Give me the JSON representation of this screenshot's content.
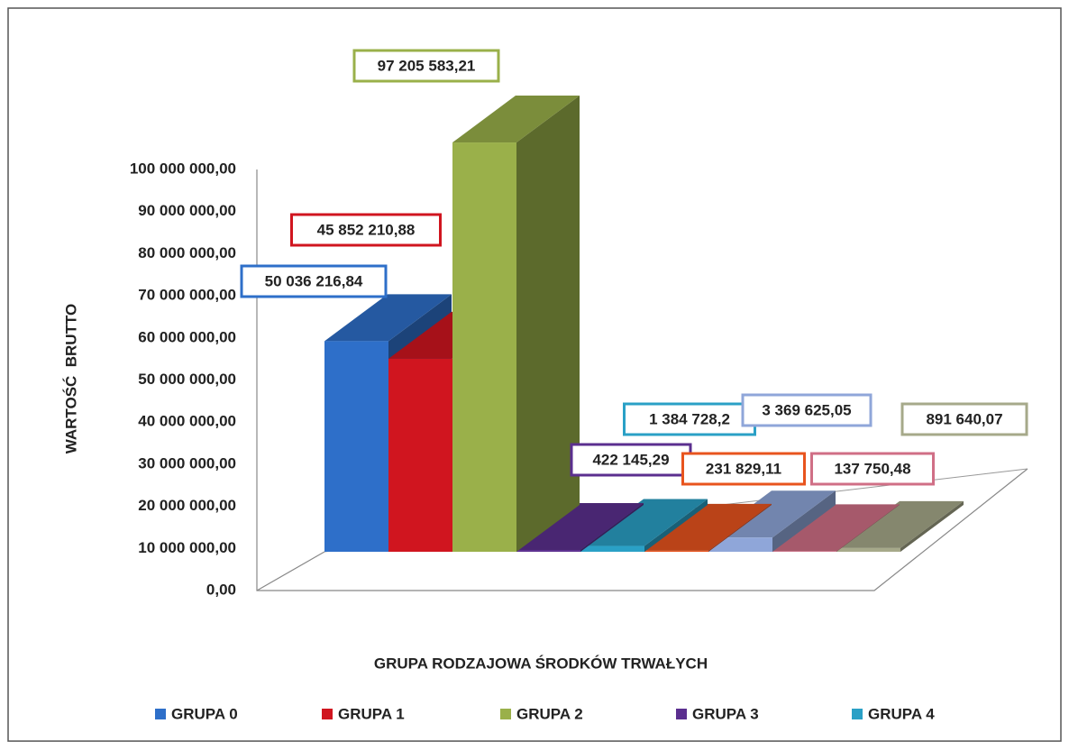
{
  "chart_data": {
    "type": "bar3d",
    "y_label": "WARTOŚĆ  BRUTTO",
    "x_label": "GRUPA RODZAJOWA ŚRODKÓW TRWAŁYCH",
    "categories": [
      "GRUPA 0",
      "GRUPA 1",
      "GRUPA 2",
      "GRUPA 3",
      "GRUPA 4",
      null,
      null,
      null,
      null
    ],
    "values": [
      50036216.84,
      45852210.88,
      97205583.21,
      422145.29,
      1384728.2,
      231829.11,
      3369625.05,
      137750.48,
      891640.07
    ],
    "value_labels": [
      "50 036 216,84",
      "45 852 210,88",
      "97 205 583,21",
      "422 145,29",
      "1 384 728,2",
      "231 829,11",
      "3 369 625,05",
      "137 750,48",
      "891 640,07"
    ],
    "colors": [
      "#2e6fc9",
      "#d0151f",
      "#9ab04a",
      "#5b2f8f",
      "#2aa0c6",
      "#e8541e",
      "#8fa6d9",
      "#d06f86",
      "#a6a98a"
    ],
    "ylim": [
      0,
      100000000
    ],
    "yticks": [
      {
        "value": 0,
        "label": "0,00"
      },
      {
        "value": 10000000,
        "label": "10 000 000,00"
      },
      {
        "value": 20000000,
        "label": "20 000 000,00"
      },
      {
        "value": 30000000,
        "label": "30 000 000,00"
      },
      {
        "value": 40000000,
        "label": "40 000 000,00"
      },
      {
        "value": 50000000,
        "label": "50 000 000,00"
      },
      {
        "value": 60000000,
        "label": "60 000 000,00"
      },
      {
        "value": 70000000,
        "label": "70 000 000,00"
      },
      {
        "value": 80000000,
        "label": "80 000 000,00"
      },
      {
        "value": 90000000,
        "label": "90 000 000,00"
      },
      {
        "value": 100000000,
        "label": "100 000 000,00"
      }
    ],
    "legend": "bottom"
  }
}
